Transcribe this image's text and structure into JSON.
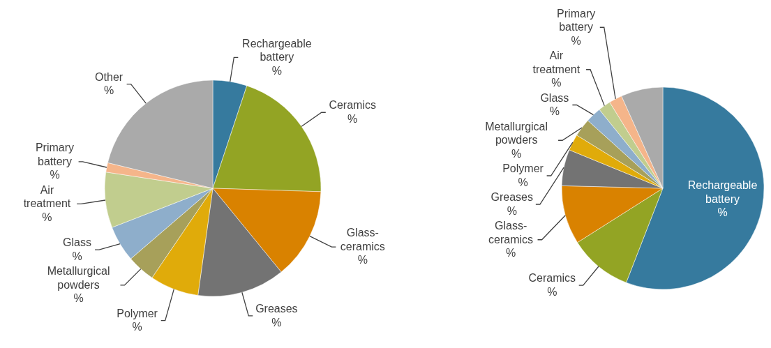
{
  "chart_data": [
    {
      "type": "pie",
      "categories": [
        "Rechargeable battery",
        "Ceramics",
        "Glass-ceramics",
        "Greases",
        "Polymer",
        "Metallurgical powders",
        "Glass",
        "Air treatment",
        "Primary battery",
        "Other"
      ],
      "values": [
        5.1,
        20.4,
        13.6,
        13.1,
        7.3,
        4.2,
        5.4,
        8.3,
        1.4,
        21.2
      ],
      "colors": [
        "#367a9e",
        "#93a424",
        "#d98200",
        "#737373",
        "#e0ab0a",
        "#a7a05a",
        "#8eaecb",
        "#c1cd8e",
        "#f5b58a",
        "#aaaaaa"
      ],
      "value_labels": [
        "%",
        "%",
        "%",
        "%",
        "%",
        "%",
        "%",
        "%",
        "%",
        "%"
      ]
    },
    {
      "type": "pie",
      "categories": [
        "Rechargeable battery",
        "Ceramics",
        "Glass-ceramics",
        "Greases",
        "Polymer",
        "Metallurgical powders",
        "Glass",
        "Air treatment",
        "Primary battery",
        null
      ],
      "values": [
        55.9,
        10.1,
        9.4,
        5.8,
        2.6,
        2.9,
        2.5,
        2.0,
        2.1,
        6.7
      ],
      "colors": [
        "#367a9e",
        "#93a424",
        "#d98200",
        "#737373",
        "#e0ab0a",
        "#a7a05a",
        "#8eaecb",
        "#c1cd8e",
        "#f5b58a",
        "#aaaaaa"
      ],
      "value_labels": [
        "%",
        "%",
        "%",
        "%",
        "%",
        "%",
        "%",
        "%",
        "%",
        null
      ]
    }
  ]
}
